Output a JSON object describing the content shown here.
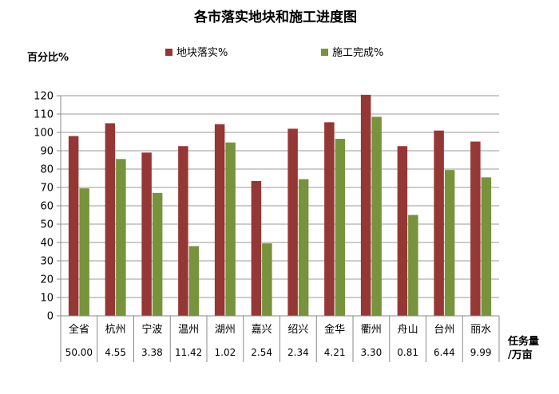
{
  "chart_data": {
    "type": "bar",
    "title": "各市落实地块和施工进度图",
    "ylabel": "百分比%",
    "ylim": [
      0,
      120
    ],
    "yticks": [
      0,
      10,
      20,
      30,
      40,
      50,
      60,
      70,
      80,
      90,
      100,
      110,
      120
    ],
    "grid": true,
    "legend_position": "top",
    "categories": [
      "全省",
      "杭州",
      "宁波",
      "温州",
      "湖州",
      "嘉兴",
      "绍兴",
      "金华",
      "衢州",
      "舟山",
      "台州",
      "丽水"
    ],
    "series": [
      {
        "name": "地块落实%",
        "color": "#953735",
        "values": [
          98,
          105,
          89,
          92.5,
          104.5,
          73.5,
          102,
          105.5,
          120.5,
          92.5,
          101,
          95
        ]
      },
      {
        "name": "施工完成%",
        "color": "#77933c",
        "values": [
          69.5,
          85.5,
          67,
          38,
          94.5,
          39.5,
          74.5,
          96.5,
          108.5,
          55,
          79.5,
          75.5
        ]
      }
    ],
    "table_row": {
      "label_line1": "任务量",
      "label_line2": "/万亩",
      "values": [
        "50.00",
        "4.55",
        "3.38",
        "11.42",
        "1.02",
        "2.54",
        "2.34",
        "4.21",
        "3.30",
        "0.81",
        "6.44",
        "9.99"
      ]
    }
  }
}
